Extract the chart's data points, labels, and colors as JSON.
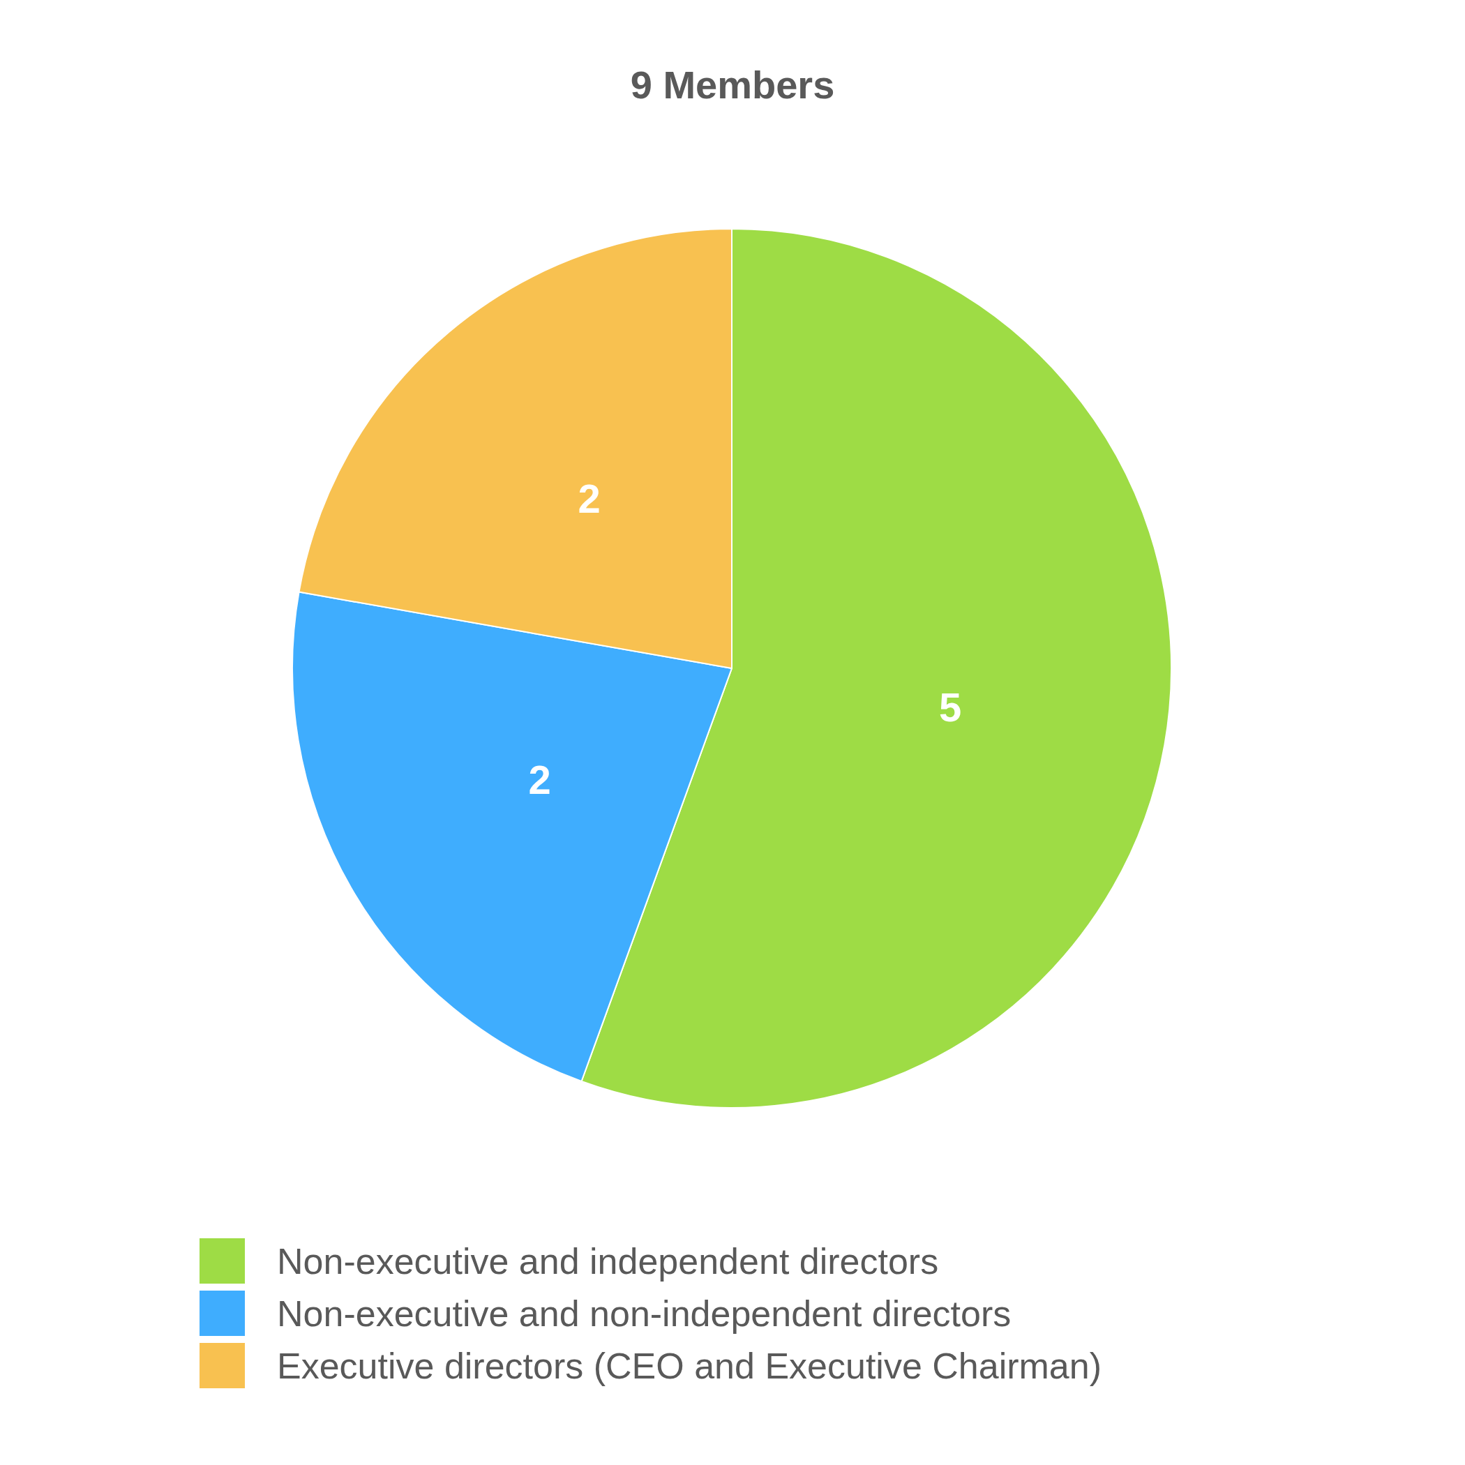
{
  "chart_data": {
    "type": "pie",
    "title": "9 Members",
    "categories": [
      "Non-executive and independent directors",
      "Non-executive and non-independent directors",
      "Executive directors (CEO and Executive Chairman)"
    ],
    "values": [
      5,
      2,
      2
    ],
    "colors": [
      "#9edc45",
      "#3fadfe",
      "#f8c150"
    ],
    "data_labels": true,
    "legend": "bottom"
  }
}
